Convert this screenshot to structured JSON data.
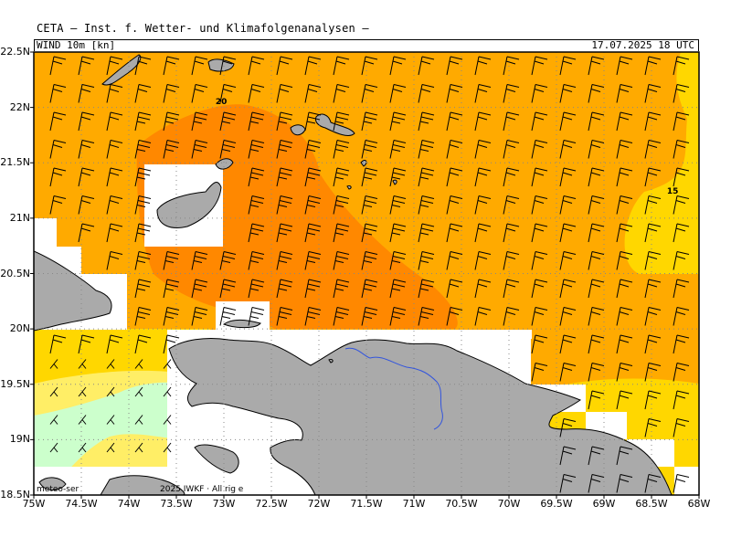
{
  "header": {
    "title": "CETA – Inst. f. Wetter- und Klimafolgenanalysen –"
  },
  "subheader": {
    "parameter": "WIND 10m [kn]",
    "datetime": "17.07.2025 18 UTC"
  },
  "axes": {
    "lat_labels": [
      "22.5N",
      "22N",
      "21.5N",
      "21N",
      "20.5N",
      "20N",
      "19.5N",
      "19N",
      "18.5N"
    ],
    "lon_labels": [
      "75W",
      "74.5W",
      "74W",
      "73.5W",
      "73W",
      "72.5W",
      "72W",
      "71.5W",
      "71W",
      "70.5W",
      "70W",
      "69.5W",
      "69W",
      "68.5W",
      "68W"
    ],
    "lon_range": [
      -75,
      -68
    ],
    "lat_range": [
      18.5,
      22.5
    ]
  },
  "contour_labels": [
    {
      "text": "20",
      "lon": -73.03,
      "lat": 22.03
    },
    {
      "text": "15",
      "lon": -68.28,
      "lat": 21.22
    }
  ],
  "footer": {
    "credit": "meteo-ser",
    "copyright": "2025 IWKF · All rig   e"
  },
  "colors": {
    "land": "#aaaaaa",
    "river": "#3355dd",
    "wind_lt10": "#ccffcc",
    "wind_10_15": "#ffee66",
    "wind_15_20": "#ffd700",
    "wind_20_25": "#ffaa00",
    "wind_25_30": "#ff8800"
  }
}
